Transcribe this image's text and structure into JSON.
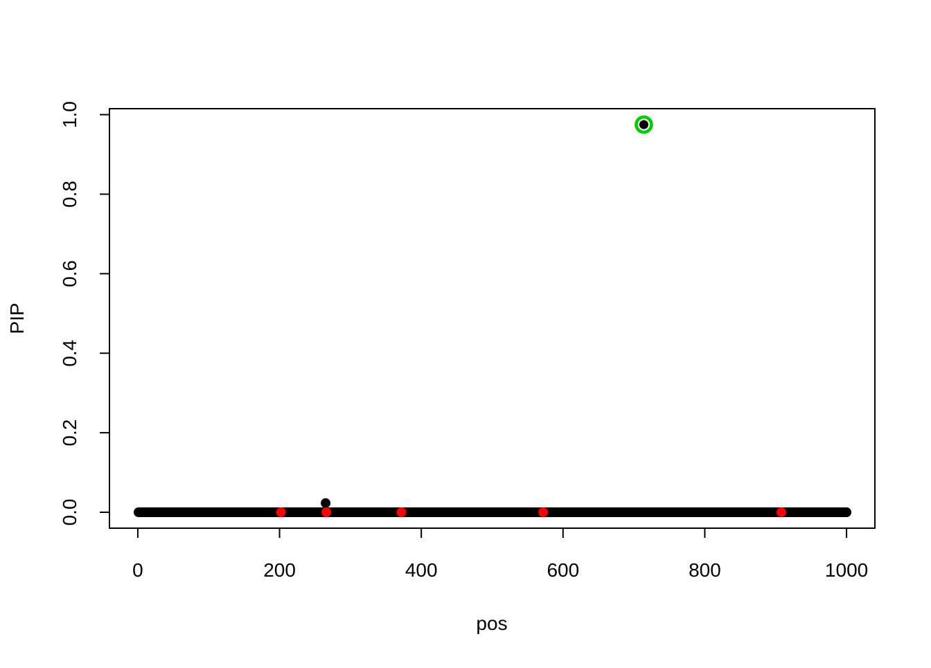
{
  "chart_data": {
    "type": "scatter",
    "title": "",
    "xlabel": "pos",
    "ylabel": "PIP",
    "xlim": [
      -40,
      1040
    ],
    "ylim": [
      -0.04,
      1.015
    ],
    "xticks": [
      0,
      200,
      400,
      600,
      800,
      1000
    ],
    "xtick_labels": [
      "0",
      "200",
      "400",
      "600",
      "800",
      "1000"
    ],
    "yticks": [
      0.0,
      0.2,
      0.4,
      0.6,
      0.8,
      1.0
    ],
    "ytick_labels": [
      "0.0",
      "0.2",
      "0.4",
      "0.6",
      "0.8",
      "1.0"
    ],
    "grid": false,
    "series": [
      {
        "role": "all-variants",
        "color": "#000000",
        "marker": "filled-circle",
        "x_range": [
          1,
          1000
        ],
        "default_y": 0,
        "nonzero": [
          {
            "x": 265,
            "y": 0.023
          },
          {
            "x": 714,
            "y": 0.975
          }
        ]
      },
      {
        "role": "highlighted-at-zero",
        "color": "#FF0000",
        "marker": "filled-circle",
        "points": [
          {
            "x": 202,
            "y": 0
          },
          {
            "x": 266,
            "y": 0
          },
          {
            "x": 372,
            "y": 0
          },
          {
            "x": 572,
            "y": 0
          },
          {
            "x": 908,
            "y": 0
          }
        ]
      },
      {
        "role": "ring-marker",
        "color": "#00CD00",
        "marker": "open-circle",
        "points": [
          {
            "x": 714,
            "y": 0.975
          }
        ]
      }
    ]
  }
}
